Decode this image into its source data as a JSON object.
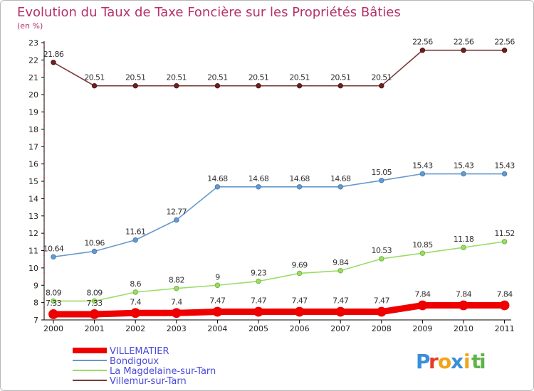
{
  "chart_data": {
    "type": "line",
    "title": "Evolution du Taux de Taxe Foncière sur les Propriétés Bâties",
    "subtitle": "(en %)",
    "x": [
      "2000",
      "2001",
      "2002",
      "2003",
      "2004",
      "2005",
      "2006",
      "2007",
      "2008",
      "2009",
      "2010",
      "2011"
    ],
    "ylim": [
      7,
      23
    ],
    "yticks": [
      "7",
      "8",
      "9",
      "10",
      "11",
      "12",
      "13",
      "14",
      "15",
      "16",
      "17",
      "18",
      "19",
      "20",
      "21",
      "22",
      "23"
    ],
    "grid": false,
    "legend_position": "bottom-left",
    "series": [
      {
        "name": "VILLEMATIER",
        "color": "#ee0000",
        "values": [
          7.33,
          7.33,
          7.4,
          7.4,
          7.47,
          7.47,
          7.47,
          7.47,
          7.47,
          7.84,
          7.84,
          7.84
        ],
        "labels": [
          "7.33",
          "7.33",
          "7.4",
          "7.4",
          "7.47",
          "7.47",
          "7.47",
          "7.47",
          "7.47",
          "7.84",
          "7.84",
          "7.84"
        ]
      },
      {
        "name": "Bondigoux",
        "color": "#6699cc",
        "values": [
          10.64,
          10.96,
          11.61,
          12.77,
          14.68,
          14.68,
          14.68,
          14.68,
          15.05,
          15.43,
          15.43,
          15.43
        ],
        "labels": [
          "10.64",
          "10.96",
          "11.61",
          "12.77",
          "14.68",
          "14.68",
          "14.68",
          "14.68",
          "15.05",
          "15.43",
          "15.43",
          "15.43"
        ]
      },
      {
        "name": "La Magdelaine-sur-Tarn",
        "color": "#99dd66",
        "values": [
          8.09,
          8.09,
          8.6,
          8.82,
          9,
          9.23,
          9.69,
          9.84,
          10.53,
          10.85,
          11.18,
          11.52
        ],
        "labels": [
          "8.09",
          "8.09",
          "8.6",
          "8.82",
          "9",
          "9.23",
          "9.69",
          "9.84",
          "10.53",
          "10.85",
          "11.18",
          "11.52"
        ]
      },
      {
        "name": "Villemur-sur-Tarn",
        "color": "#7a3a3a",
        "values": [
          21.86,
          20.51,
          20.51,
          20.51,
          20.51,
          20.51,
          20.51,
          20.51,
          20.51,
          22.56,
          22.56,
          22.56
        ],
        "labels": [
          "21.86",
          "20.51",
          "20.51",
          "20.51",
          "20.51",
          "20.51",
          "20.51",
          "20.51",
          "20.51",
          "22.56",
          "22.56",
          "22.56"
        ]
      }
    ],
    "logo": {
      "text": "Proxiti",
      "letters": [
        {
          "ch": "P",
          "color": "#3a8fd8"
        },
        {
          "ch": "r",
          "color": "#e43b2c"
        },
        {
          "ch": "o",
          "color": "#f2a51a"
        },
        {
          "ch": "x",
          "color": "#3a8fd8"
        },
        {
          "ch": "i",
          "color": "#f2a51a"
        },
        {
          "ch": "t",
          "color": "#5fb34a"
        },
        {
          "ch": "i",
          "color": "#5fb34a"
        }
      ]
    }
  }
}
